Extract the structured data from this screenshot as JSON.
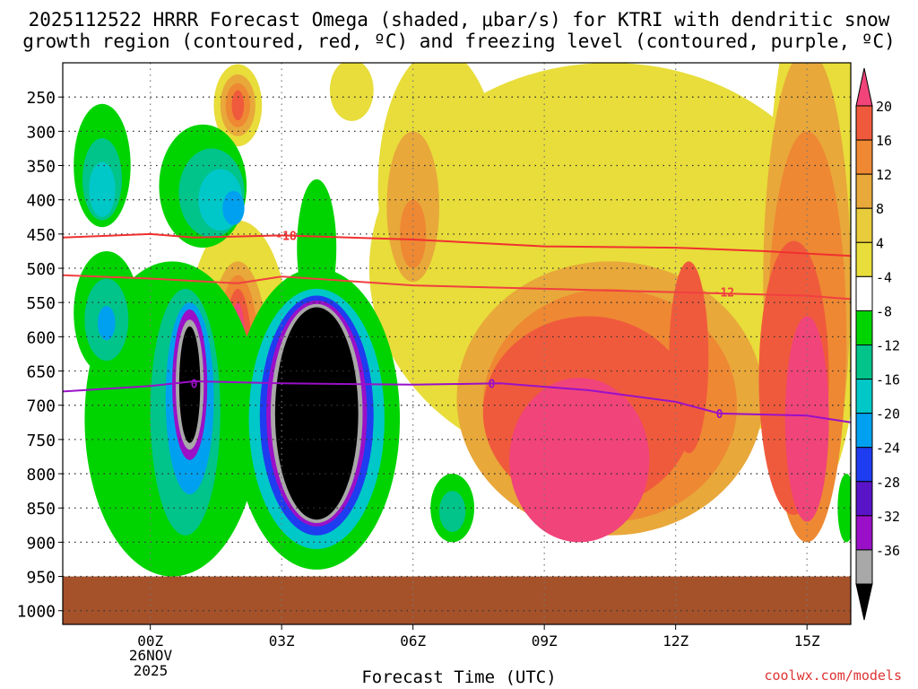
{
  "chart_data": {
    "type": "heatmap",
    "title_line1": "2025112522 HRRR Forecast Omega (shaded, μbar/s) for KTRI with dendritic snow",
    "title_line2": "growth region (contoured, red, ºC) and freezing level (contoured, purple, ºC)",
    "xlabel": "Forecast Time (UTC)",
    "x_ticks": [
      "00Z",
      "03Z",
      "06Z",
      "09Z",
      "12Z",
      "15Z"
    ],
    "x_tick_hours": [
      0,
      3,
      6,
      9,
      12,
      15
    ],
    "x_range_hours": [
      -2,
      16
    ],
    "x_date_label": [
      "26NOV",
      "2025"
    ],
    "y_ticks": [
      250,
      300,
      350,
      400,
      450,
      500,
      550,
      600,
      650,
      700,
      750,
      800,
      850,
      900,
      950,
      1000
    ],
    "y_range_hPa": [
      200,
      1020
    ],
    "colorbar": {
      "labels": [
        "20",
        "16",
        "12",
        "8",
        "4",
        "-4",
        "-8",
        "-12",
        "-16",
        "-20",
        "-24",
        "-28",
        "-32",
        "-36"
      ],
      "colors": [
        "#f0447a",
        "#f05a3c",
        "#ee8833",
        "#e8a83a",
        "#e8cc3c",
        "#e8dd3a",
        "#ffffff",
        "#00d400",
        "#00c48a",
        "#00c8c8",
        "#00a0f0",
        "#1e3cf0",
        "#5a14c8",
        "#9a10c8",
        "#a8a8a8",
        "#000000"
      ]
    },
    "contours": [
      {
        "label": "-18",
        "color": "#f03030",
        "points": [
          [
            -2,
            455
          ],
          [
            0,
            450
          ],
          [
            1,
            455
          ],
          [
            3,
            452
          ],
          [
            6,
            458
          ],
          [
            9,
            468
          ],
          [
            12,
            470
          ],
          [
            14,
            475
          ],
          [
            16,
            482
          ]
        ]
      },
      {
        "label": "-12",
        "color": "#f04040",
        "points": [
          [
            -2,
            510
          ],
          [
            0,
            515
          ],
          [
            2,
            522
          ],
          [
            3,
            512
          ],
          [
            6,
            525
          ],
          [
            9,
            530
          ],
          [
            12,
            535
          ],
          [
            15,
            540
          ],
          [
            16,
            545
          ]
        ]
      },
      {
        "label": "0",
        "color": "#9a10c8",
        "points": [
          [
            -2,
            680
          ],
          [
            0,
            672
          ],
          [
            1,
            665
          ],
          [
            3,
            668
          ],
          [
            6,
            670
          ],
          [
            8,
            668
          ],
          [
            10,
            678
          ],
          [
            12,
            695
          ],
          [
            13,
            712
          ],
          [
            15,
            715
          ],
          [
            16,
            725
          ]
        ]
      }
    ],
    "contour_labels": [
      {
        "text": "-18",
        "x": 3.1,
        "y": 452,
        "color": "#f03030"
      },
      {
        "text": "-12",
        "x": 13.1,
        "y": 535,
        "color": "#f04040"
      },
      {
        "text": "0",
        "x": 1.0,
        "y": 668,
        "color": "#9a10c8"
      },
      {
        "text": "0",
        "x": 7.8,
        "y": 668,
        "color": "#9a10c8"
      },
      {
        "text": "0",
        "x": 13.0,
        "y": 712,
        "color": "#9a10c8"
      }
    ],
    "ground_level_hPa": 950,
    "ground_color": "#a5522a",
    "omega_regions": [
      {
        "level": 4,
        "color": "#e8dd3a",
        "cx": 10.5,
        "cy": 500,
        "rx": 5.5,
        "ry": 300
      },
      {
        "level": 4,
        "color": "#e8dd3a",
        "cx": 6.6,
        "cy": 380,
        "rx": 1.4,
        "ry": 200
      },
      {
        "level": 4,
        "color": "#e8dd3a",
        "cx": 15.2,
        "cy": 450,
        "rx": 1.1,
        "ry": 380
      },
      {
        "level": 4,
        "color": "#e8dd3a",
        "cx": 4.6,
        "cy": 240,
        "rx": 0.5,
        "ry": 45
      },
      {
        "level": 8,
        "color": "#e8a83a",
        "cx": 6.0,
        "cy": 410,
        "rx": 0.6,
        "ry": 110
      },
      {
        "level": 8,
        "color": "#e8a83a",
        "cx": 10.5,
        "cy": 690,
        "rx": 3.5,
        "ry": 200
      },
      {
        "level": 8,
        "color": "#e8a83a",
        "cx": 15.0,
        "cy": 520,
        "rx": 1.0,
        "ry": 340
      },
      {
        "level": 12,
        "color": "#ee8833",
        "cx": 10.5,
        "cy": 700,
        "rx": 2.9,
        "ry": 170
      },
      {
        "level": 12,
        "color": "#ee8833",
        "cx": 15.0,
        "cy": 600,
        "rx": 0.9,
        "ry": 300
      },
      {
        "level": 12,
        "color": "#ee8833",
        "cx": 6.0,
        "cy": 450,
        "rx": 0.3,
        "ry": 50
      },
      {
        "level": 16,
        "color": "#f05a3c",
        "cx": 10.0,
        "cy": 710,
        "rx": 2.4,
        "ry": 140
      },
      {
        "level": 16,
        "color": "#f05a3c",
        "cx": 12.3,
        "cy": 630,
        "rx": 0.45,
        "ry": 140
      },
      {
        "level": 16,
        "color": "#f05a3c",
        "cx": 14.7,
        "cy": 660,
        "rx": 0.8,
        "ry": 200
      },
      {
        "level": 20,
        "color": "#f0447a",
        "cx": 9.8,
        "cy": 780,
        "rx": 1.6,
        "ry": 120
      },
      {
        "level": 20,
        "color": "#f0447a",
        "cx": 15.0,
        "cy": 720,
        "rx": 0.5,
        "ry": 150
      },
      {
        "level": 4,
        "color": "#e8dd3a",
        "cx": 2.0,
        "cy": 620,
        "rx": 1.2,
        "ry": 190
      },
      {
        "level": 8,
        "color": "#e8a83a",
        "cx": 2.0,
        "cy": 640,
        "rx": 0.7,
        "ry": 150
      },
      {
        "level": 12,
        "color": "#ee8833",
        "cx": 2.0,
        "cy": 650,
        "rx": 0.5,
        "ry": 140
      },
      {
        "level": 16,
        "color": "#f05a3c",
        "cx": 2.0,
        "cy": 660,
        "rx": 0.35,
        "ry": 130
      },
      {
        "level": 20,
        "color": "#f0447a",
        "cx": 2.0,
        "cy": 670,
        "rx": 0.22,
        "ry": 120
      },
      {
        "level": 4,
        "color": "#e8dd3a",
        "cx": 2.0,
        "cy": 262,
        "rx": 0.55,
        "ry": 60
      },
      {
        "level": 8,
        "color": "#e8a83a",
        "cx": 2.0,
        "cy": 262,
        "rx": 0.4,
        "ry": 45
      },
      {
        "level": 12,
        "color": "#ee8833",
        "cx": 2.0,
        "cy": 262,
        "rx": 0.28,
        "ry": 32
      },
      {
        "level": 16,
        "color": "#f05a3c",
        "cx": 2.0,
        "cy": 262,
        "rx": 0.14,
        "ry": 22
      },
      {
        "level": -4,
        "color": "#00d400",
        "cx": -1.1,
        "cy": 350,
        "rx": 0.65,
        "ry": 90
      },
      {
        "level": -8,
        "color": "#00c48a",
        "cx": -1.1,
        "cy": 370,
        "rx": 0.45,
        "ry": 60
      },
      {
        "level": -12,
        "color": "#00c8c8",
        "cx": -1.1,
        "cy": 385,
        "rx": 0.3,
        "ry": 40
      },
      {
        "level": -4,
        "color": "#00d400",
        "cx": 1.2,
        "cy": 380,
        "rx": 1.0,
        "ry": 90
      },
      {
        "level": -8,
        "color": "#00c48a",
        "cx": 1.4,
        "cy": 390,
        "rx": 0.75,
        "ry": 65
      },
      {
        "level": -12,
        "color": "#00c8c8",
        "cx": 1.6,
        "cy": 400,
        "rx": 0.5,
        "ry": 45
      },
      {
        "level": -16,
        "color": "#00a0f0",
        "cx": 1.9,
        "cy": 412,
        "rx": 0.25,
        "ry": 25
      },
      {
        "level": -4,
        "color": "#00d400",
        "cx": 0.5,
        "cy": 720,
        "rx": 2.0,
        "ry": 230
      },
      {
        "level": -4,
        "color": "#00d400",
        "cx": 3.8,
        "cy": 470,
        "rx": 0.45,
        "ry": 100
      },
      {
        "level": -4,
        "color": "#00d400",
        "cx": 3.8,
        "cy": 720,
        "rx": 1.9,
        "ry": 220
      },
      {
        "level": -4,
        "color": "#00d400",
        "cx": -1.0,
        "cy": 565,
        "rx": 0.75,
        "ry": 90
      },
      {
        "level": -8,
        "color": "#00c48a",
        "cx": -1.0,
        "cy": 575,
        "rx": 0.5,
        "ry": 60
      },
      {
        "level": -16,
        "color": "#00a0f0",
        "cx": -1.0,
        "cy": 580,
        "rx": 0.2,
        "ry": 25
      },
      {
        "level": -8,
        "color": "#00c48a",
        "cx": 0.8,
        "cy": 710,
        "rx": 0.8,
        "ry": 180
      },
      {
        "level": -16,
        "color": "#00a0f0",
        "cx": 0.9,
        "cy": 690,
        "rx": 0.55,
        "ry": 140
      },
      {
        "level": -28,
        "color": "#9a10c8",
        "cx": 0.9,
        "cy": 670,
        "rx": 0.4,
        "ry": 110
      },
      {
        "level": -32,
        "color": "#a8a8a8",
        "cx": 0.9,
        "cy": 670,
        "rx": 0.32,
        "ry": 95
      },
      {
        "level": -36,
        "color": "#000000",
        "cx": 0.9,
        "cy": 670,
        "rx": 0.24,
        "ry": 85
      },
      {
        "level": -12,
        "color": "#00c8c8",
        "cx": 3.8,
        "cy": 720,
        "rx": 1.55,
        "ry": 190
      },
      {
        "level": -20,
        "color": "#1e3cf0",
        "cx": 3.8,
        "cy": 715,
        "rx": 1.3,
        "ry": 175
      },
      {
        "level": -28,
        "color": "#9a10c8",
        "cx": 3.8,
        "cy": 712,
        "rx": 1.15,
        "ry": 165
      },
      {
        "level": -32,
        "color": "#a8a8a8",
        "cx": 3.8,
        "cy": 712,
        "rx": 1.05,
        "ry": 160
      },
      {
        "level": -36,
        "color": "#000000",
        "cx": 3.8,
        "cy": 712,
        "rx": 0.95,
        "ry": 155
      },
      {
        "level": -4,
        "color": "#00d400",
        "cx": 6.9,
        "cy": 850,
        "rx": 0.5,
        "ry": 50
      },
      {
        "level": -8,
        "color": "#00c48a",
        "cx": 6.9,
        "cy": 855,
        "rx": 0.3,
        "ry": 30
      },
      {
        "level": -4,
        "color": "#00d400",
        "cx": -1.2,
        "cy": 740,
        "rx": 0.2,
        "ry": 30
      },
      {
        "level": -4,
        "color": "#00d400",
        "cx": 15.9,
        "cy": 850,
        "rx": 0.2,
        "ry": 50
      }
    ]
  },
  "credit": "coolwx.com/models"
}
